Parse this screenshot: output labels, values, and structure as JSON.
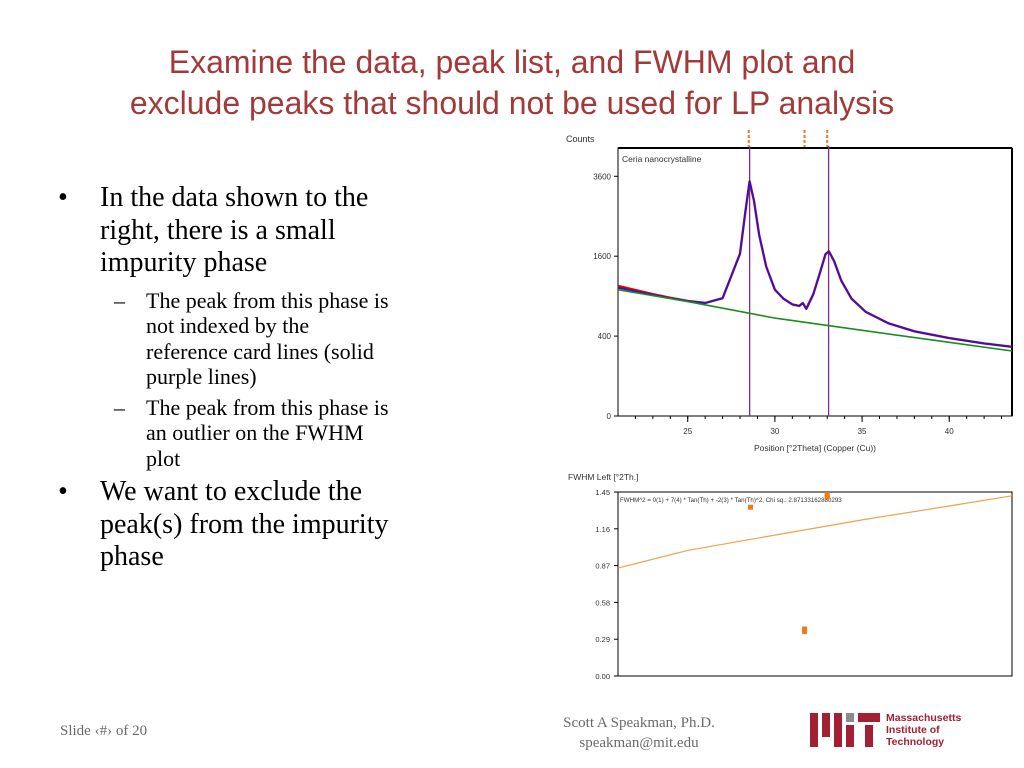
{
  "slide": {
    "title_line1": "Examine the data, peak list, and FWHM plot and",
    "title_line2": "exclude peaks that should not be used for LP analysis",
    "bullets": [
      {
        "level": 1,
        "text_lines": [
          "In the data shown to the",
          "right, there is a small",
          "impurity phase"
        ]
      },
      {
        "level": 2,
        "text_lines": [
          "The peak from this phase is",
          "not indexed by the",
          "reference card lines (solid",
          "purple lines)"
        ]
      },
      {
        "level": 2,
        "text_lines": [
          "The peak from this phase is",
          "an outlier on the FWHM",
          "plot"
        ]
      },
      {
        "level": 1,
        "text_lines": [
          "We want to exclude the",
          "peak(s) from the impurity",
          "phase"
        ]
      }
    ],
    "bullet_mark_l1": "•",
    "bullet_mark_l2": "–",
    "footer_slide": "Slide ‹#› of 20",
    "footer_author_line1": "Scott A Speakman, Ph.D.",
    "footer_author_email": "speakman@mit.edu",
    "logo_text": [
      "Massachusetts",
      "Institute of",
      "Technology"
    ],
    "colors": {
      "title": "#a23a3a",
      "mit_red": "#a31f34",
      "mit_gray": "#8a8b8c"
    }
  },
  "chart_data": [
    {
      "type": "line",
      "ylabel": "Counts",
      "xlabel": "Position [°2Theta] (Copper (Cu))",
      "annotation": "Ceria nanocrystalline",
      "xlim": [
        21,
        43.6
      ],
      "y_ticks": [
        0,
        400,
        1600,
        3600
      ],
      "y_scale": "sqrt",
      "x_ticks": [
        25,
        30,
        35,
        40
      ],
      "y_max": 4500,
      "series": [
        {
          "color": "#e00000",
          "role": "observed",
          "x": [
            21,
            22,
            23,
            24,
            25,
            26,
            27,
            28,
            28.3,
            28.55,
            28.8,
            29.1,
            29.5,
            30,
            30.5,
            31,
            31.4,
            31.6,
            31.8,
            32.2,
            32.6,
            32.9,
            33.1,
            33.4,
            33.8,
            34.4,
            35.2,
            36.5,
            38,
            40,
            42,
            43.6
          ],
          "y": [
            1060,
            995,
            930,
            875,
            830,
            800,
            870,
            1650,
            2600,
            3450,
            2900,
            2050,
            1400,
            1000,
            860,
            780,
            760,
            800,
            720,
            930,
            1300,
            1640,
            1700,
            1500,
            1150,
            860,
            680,
            540,
            450,
            380,
            330,
            300
          ]
        },
        {
          "color": "#1a1ad8",
          "role": "calculated",
          "x": [
            21,
            22,
            23,
            24,
            25,
            26,
            27,
            28,
            28.3,
            28.55,
            28.8,
            29.1,
            29.5,
            30,
            30.5,
            31,
            31.4,
            31.6,
            31.8,
            32.2,
            32.6,
            32.9,
            33.1,
            33.4,
            33.8,
            34.4,
            35.2,
            36.5,
            38,
            40,
            42,
            43.6
          ],
          "y": [
            1030,
            975,
            920,
            870,
            830,
            800,
            870,
            1650,
            2600,
            3450,
            2900,
            2050,
            1400,
            1000,
            860,
            780,
            760,
            800,
            720,
            930,
            1300,
            1640,
            1700,
            1500,
            1150,
            860,
            680,
            540,
            450,
            380,
            330,
            300
          ]
        },
        {
          "color": "#1d8c1d",
          "role": "background",
          "x": [
            21,
            25,
            30,
            35,
            40,
            43.6
          ],
          "y": [
            1000,
            820,
            600,
            460,
            340,
            265
          ]
        }
      ],
      "reference_lines": {
        "color": "#7b2d8e",
        "positions": [
          28.55,
          33.08
        ]
      },
      "peak_markers": {
        "color": "#f07a1a",
        "positions": [
          28.5,
          31.7,
          33.0
        ]
      }
    },
    {
      "type": "scatter",
      "ylabel": "FWHM Left [°2Th.]",
      "formula": "FWHM^2 = 0(1) + 7(4) * Tan(Th) + -2(3) * Tan(Th)^2, Chi sq.: 2.87133162880293",
      "xlim": [
        21,
        43.6
      ],
      "ylim": [
        0,
        1.45
      ],
      "y_ticks": [
        "0.00",
        "0.29",
        "0.58",
        "0.87",
        "1.16",
        "1.45"
      ],
      "points": [
        {
          "x": 28.6,
          "y": 1.33
        },
        {
          "x": 31.7,
          "y": 0.37
        },
        {
          "x": 31.7,
          "y": 0.35
        },
        {
          "x": 33.0,
          "y": 1.41
        },
        {
          "x": 33.0,
          "y": 1.43
        }
      ],
      "curve": {
        "color": "#f0a050",
        "x": [
          21,
          25,
          30,
          35,
          40,
          43.6
        ],
        "y": [
          0.85,
          0.99,
          1.11,
          1.23,
          1.34,
          1.42
        ]
      },
      "point_color": "#f07a1a"
    }
  ]
}
